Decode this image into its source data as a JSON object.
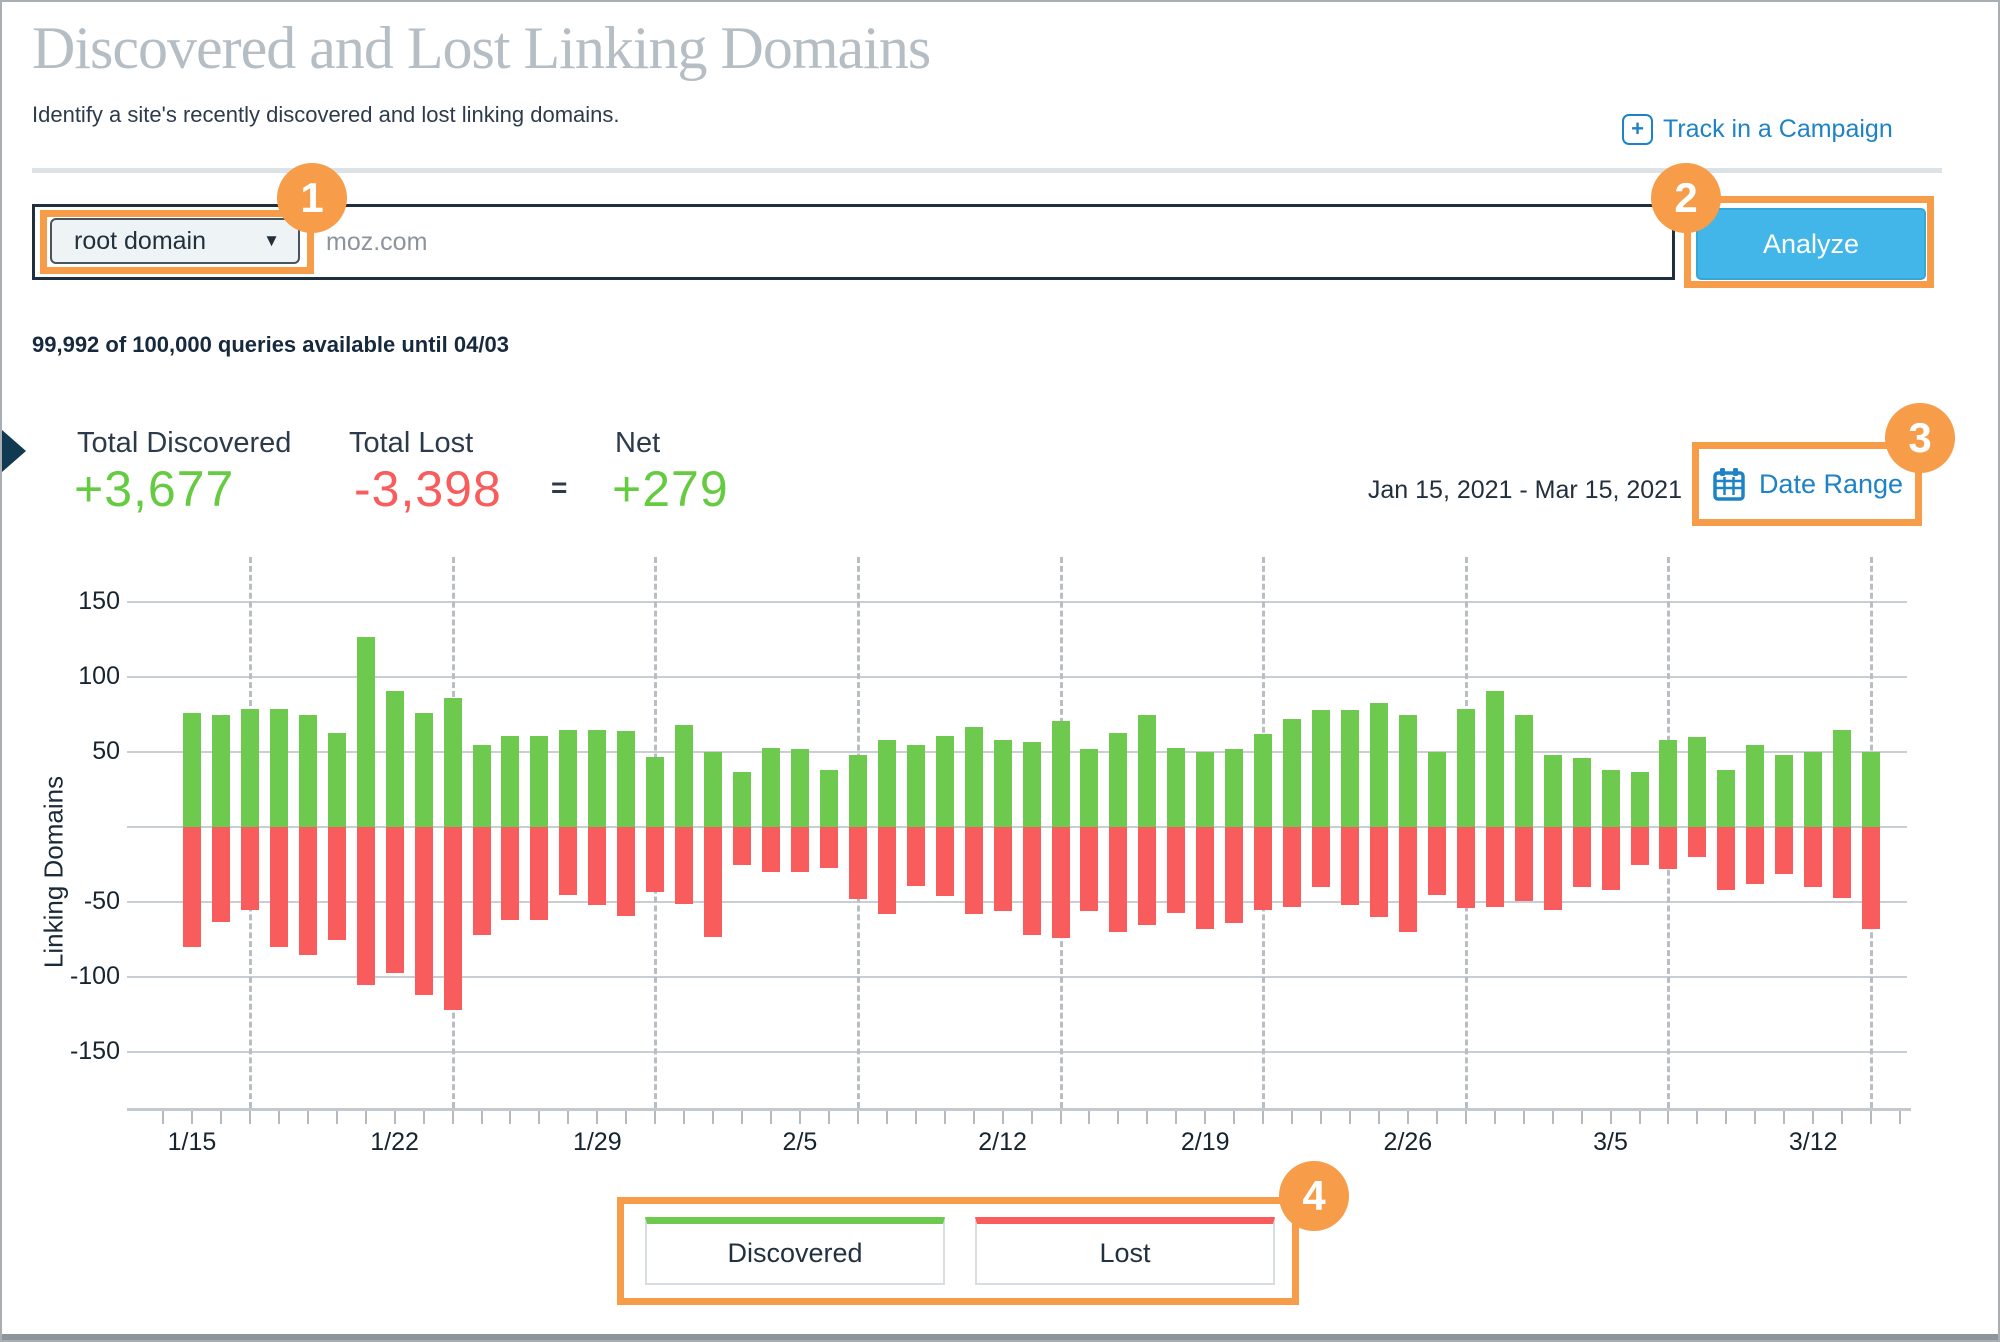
{
  "header": {
    "title": "Discovered and Lost Linking Domains",
    "subtitle": "Identify a site's recently discovered and lost linking domains.",
    "track_link": {
      "label": "Track in a Campaign",
      "icon": "plus-square-icon",
      "plus_glyph": "+"
    }
  },
  "search": {
    "scope": "root domain",
    "caret": "▼",
    "placeholder": "moz.com",
    "analyze_label": "Analyze",
    "quota": "99,992 of 100,000 queries available until 04/03"
  },
  "stats": {
    "discovered": {
      "label": "Total Discovered",
      "value": "+3,677"
    },
    "lost": {
      "label": "Total Lost",
      "value": "-3,398"
    },
    "equals": "=",
    "net": {
      "label": "Net",
      "value": "+279"
    }
  },
  "date_range": {
    "text": "Jan 15, 2021 - Mar 15, 2021",
    "button_label": "Date Range",
    "icon": "calendar-icon"
  },
  "annotations": [
    "1",
    "2",
    "3",
    "4"
  ],
  "colors": {
    "annotation_orange": "#f79c49",
    "discovered_green": "#6dca4e",
    "lost_red": "#f85c5c",
    "link_blue": "#1d83c6",
    "analyze_blue": "#42b6e8",
    "title_gray": "#b5bec4"
  },
  "chart_data": {
    "type": "bar",
    "title": "",
    "xlabel": "",
    "ylabel": "Linking Domains",
    "ylim": [
      -150,
      150
    ],
    "yticks": [
      150,
      100,
      50,
      -50,
      -100,
      -150
    ],
    "grid": true,
    "legend_position": "bottom",
    "series": [
      {
        "name": "Discovered",
        "color": "#6dca4e"
      },
      {
        "name": "Lost",
        "color": "#f85c5c"
      }
    ],
    "xtick_labels": [
      "1/15",
      "1/22",
      "1/29",
      "2/5",
      "2/12",
      "2/19",
      "2/26",
      "3/5",
      "3/12"
    ],
    "days": [
      {
        "date": "1/15",
        "discovered": 76,
        "lost": -80
      },
      {
        "date": "1/16",
        "discovered": 75,
        "lost": -63
      },
      {
        "date": "1/17",
        "discovered": 79,
        "lost": -55
      },
      {
        "date": "1/18",
        "discovered": 79,
        "lost": -80
      },
      {
        "date": "1/19",
        "discovered": 75,
        "lost": -85
      },
      {
        "date": "1/20",
        "discovered": 63,
        "lost": -75
      },
      {
        "date": "1/21",
        "discovered": 127,
        "lost": -105
      },
      {
        "date": "1/22",
        "discovered": 91,
        "lost": -97
      },
      {
        "date": "1/23",
        "discovered": 76,
        "lost": -112
      },
      {
        "date": "1/24",
        "discovered": 86,
        "lost": -122
      },
      {
        "date": "1/25",
        "discovered": 55,
        "lost": -72
      },
      {
        "date": "1/26",
        "discovered": 61,
        "lost": -62
      },
      {
        "date": "1/27",
        "discovered": 61,
        "lost": -62
      },
      {
        "date": "1/28",
        "discovered": 65,
        "lost": -45
      },
      {
        "date": "1/29",
        "discovered": 65,
        "lost": -52
      },
      {
        "date": "1/30",
        "discovered": 64,
        "lost": -59
      },
      {
        "date": "1/31",
        "discovered": 47,
        "lost": -43
      },
      {
        "date": "2/1",
        "discovered": 68,
        "lost": -51
      },
      {
        "date": "2/2",
        "discovered": 50,
        "lost": -73
      },
      {
        "date": "2/3",
        "discovered": 37,
        "lost": -25
      },
      {
        "date": "2/4",
        "discovered": 53,
        "lost": -30
      },
      {
        "date": "2/5",
        "discovered": 52,
        "lost": -30
      },
      {
        "date": "2/6",
        "discovered": 38,
        "lost": -27
      },
      {
        "date": "2/7",
        "discovered": 48,
        "lost": -48
      },
      {
        "date": "2/8",
        "discovered": 58,
        "lost": -58
      },
      {
        "date": "2/9",
        "discovered": 55,
        "lost": -39
      },
      {
        "date": "2/10",
        "discovered": 61,
        "lost": -46
      },
      {
        "date": "2/11",
        "discovered": 67,
        "lost": -58
      },
      {
        "date": "2/12",
        "discovered": 58,
        "lost": -56
      },
      {
        "date": "2/13",
        "discovered": 57,
        "lost": -72
      },
      {
        "date": "2/14",
        "discovered": 71,
        "lost": -74
      },
      {
        "date": "2/15",
        "discovered": 52,
        "lost": -56
      },
      {
        "date": "2/16",
        "discovered": 63,
        "lost": -70
      },
      {
        "date": "2/17",
        "discovered": 75,
        "lost": -65
      },
      {
        "date": "2/18",
        "discovered": 53,
        "lost": -57
      },
      {
        "date": "2/19",
        "discovered": 50,
        "lost": -68
      },
      {
        "date": "2/20",
        "discovered": 52,
        "lost": -64
      },
      {
        "date": "2/21",
        "discovered": 62,
        "lost": -55
      },
      {
        "date": "2/22",
        "discovered": 72,
        "lost": -53
      },
      {
        "date": "2/23",
        "discovered": 78,
        "lost": -40
      },
      {
        "date": "2/24",
        "discovered": 78,
        "lost": -52
      },
      {
        "date": "2/25",
        "discovered": 83,
        "lost": -60
      },
      {
        "date": "2/26",
        "discovered": 75,
        "lost": -70
      },
      {
        "date": "2/27",
        "discovered": 50,
        "lost": -45
      },
      {
        "date": "2/28",
        "discovered": 79,
        "lost": -54
      },
      {
        "date": "3/1",
        "discovered": 91,
        "lost": -53
      },
      {
        "date": "3/2",
        "discovered": 75,
        "lost": -49
      },
      {
        "date": "3/3",
        "discovered": 48,
        "lost": -55
      },
      {
        "date": "3/4",
        "discovered": 46,
        "lost": -40
      },
      {
        "date": "3/5",
        "discovered": 38,
        "lost": -42
      },
      {
        "date": "3/6",
        "discovered": 37,
        "lost": -25
      },
      {
        "date": "3/7",
        "discovered": 58,
        "lost": -28
      },
      {
        "date": "3/8",
        "discovered": 60,
        "lost": -20
      },
      {
        "date": "3/9",
        "discovered": 38,
        "lost": -42
      },
      {
        "date": "3/10",
        "discovered": 55,
        "lost": -38
      },
      {
        "date": "3/11",
        "discovered": 48,
        "lost": -31
      },
      {
        "date": "3/12",
        "discovered": 50,
        "lost": -40
      },
      {
        "date": "3/13",
        "discovered": 65,
        "lost": -47
      },
      {
        "date": "3/14",
        "discovered": 50,
        "lost": -68
      }
    ]
  }
}
